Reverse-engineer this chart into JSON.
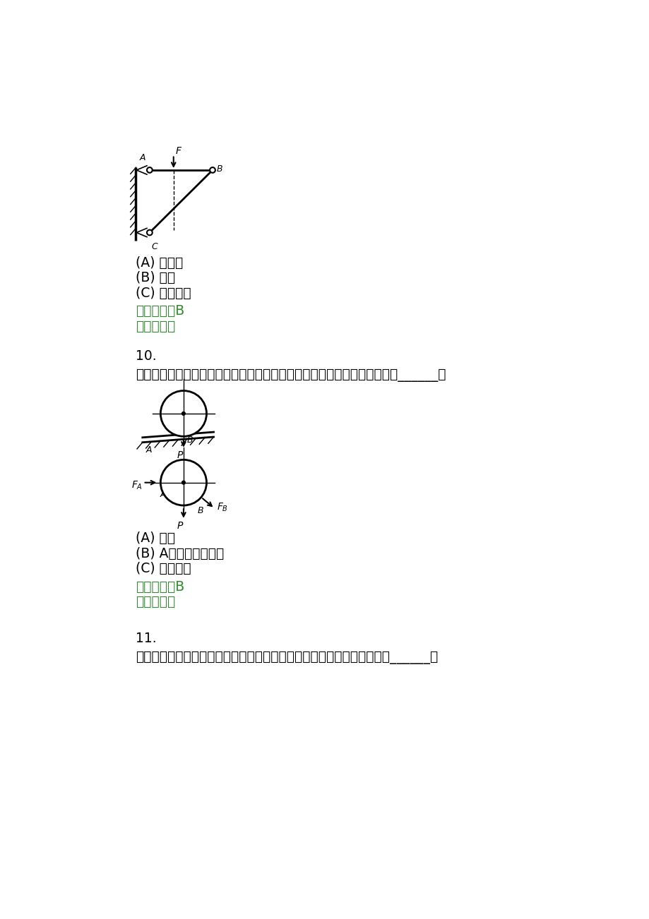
{
  "bg_color": "#ffffff",
  "text_color": "#000000",
  "green_color": "#2e8b2e",
  "body_font_size": 13.5,
  "optA1": "(A) 不改变",
  "optB1": "(B) 改变",
  "optC1": "(C) 不能确定",
  "answer1_correct": "正确答案：B",
  "answer1_ref": "解答参考：",
  "q10_label": "10.",
  "q10_text": "如图所示，物体处于平衡，自重不计，接触处是光滑的，图中所画受力图是______。",
  "optA2": "(A) 正确",
  "optB2": "(B) A处约束力不正确",
  "optC2": "(C) 不能确定",
  "answer2_correct": "正确答案：B",
  "answer2_ref": "解答参考：",
  "q11_label": "11.",
  "q11_text": "如图所示，各杆处于平衡，杆重不计，接触处是光滑的，图中所画受力图______。"
}
